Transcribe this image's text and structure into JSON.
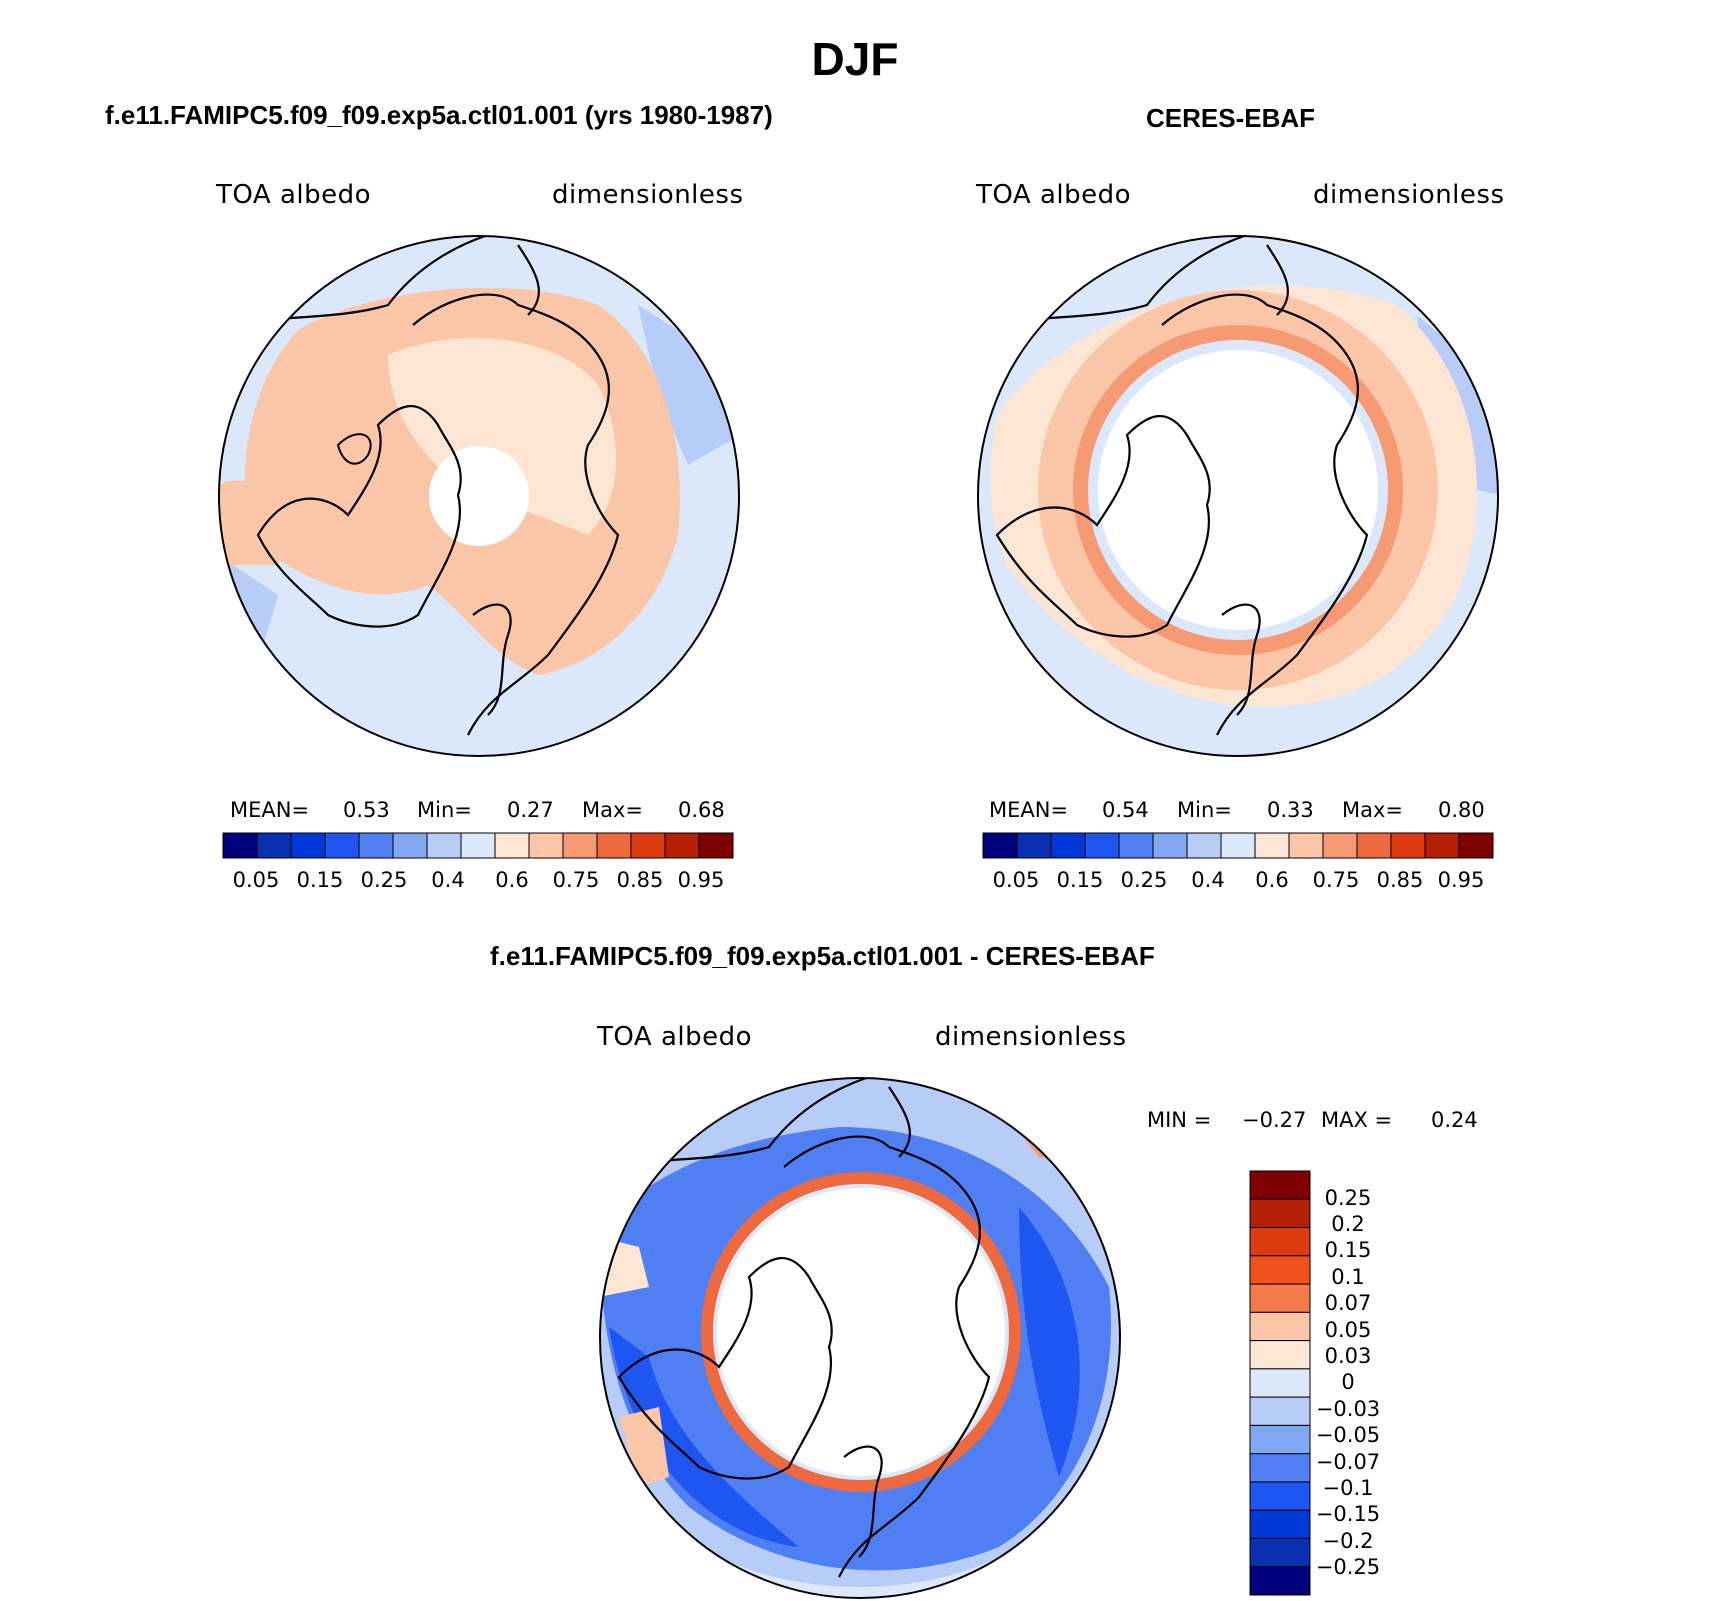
{
  "title": "DJF",
  "panels": [
    {
      "id": "model",
      "title": "f.e11.FAMIPC5.f09_f09.exp5a.ctl01.001 (yrs 1980-1987)",
      "variable": "TOA albedo",
      "units": "dimensionless",
      "stats": {
        "mean_label": "MEAN=",
        "mean": "0.53",
        "min_label": "Min=",
        "min": "0.27",
        "max_label": "Max=",
        "max": "0.68"
      },
      "colorbar_ticks": [
        "0.05",
        "0.15",
        "0.25",
        "0.4",
        "0.6",
        "0.75",
        "0.85",
        "0.95"
      ]
    },
    {
      "id": "obs",
      "title": "CERES-EBAF",
      "variable": "TOA albedo",
      "units": "dimensionless",
      "stats": {
        "mean_label": "MEAN=",
        "mean": "0.54",
        "min_label": "Min=",
        "min": "0.33",
        "max_label": "Max=",
        "max": "0.80"
      },
      "colorbar_ticks": [
        "0.05",
        "0.15",
        "0.25",
        "0.4",
        "0.6",
        "0.75",
        "0.85",
        "0.95"
      ]
    }
  ],
  "diff": {
    "title": "f.e11.FAMIPC5.f09_f09.exp5a.ctl01.001 - CERES-EBAF",
    "variable": "TOA albedo",
    "units": "dimensionless",
    "stats": {
      "min_label": "MIN =",
      "min": "−0.27",
      "max_label": "MAX =",
      "max": "0.24"
    },
    "colorbar_ticks": [
      "0.25",
      "0.2",
      "0.15",
      "0.1",
      "0.07",
      "0.05",
      "0.03",
      "0",
      "−0.03",
      "−0.05",
      "−0.07",
      "−0.1",
      "−0.15",
      "−0.2",
      "−0.25"
    ]
  },
  "colors": {
    "seq_scale": [
      "#00007f",
      "#0a2fb0",
      "#0039d8",
      "#1f55f0",
      "#4f7ff3",
      "#82a7f3",
      "#b7ccf7",
      "#dbe8fb",
      "#fde5d3",
      "#fbc5a7",
      "#f59a73",
      "#ee6a3e",
      "#dd3b12",
      "#b52006",
      "#7f0000"
    ],
    "diff_scale": [
      "#7f0000",
      "#b52006",
      "#dd3b12",
      "#f2521f",
      "#f57a4a",
      "#fbc5a7",
      "#fde5d3",
      "#dbe8fb",
      "#b7ccf7",
      "#82a7f3",
      "#4f7ff3",
      "#1f55f0",
      "#0039d8",
      "#0a2fb0",
      "#00007f"
    ]
  },
  "chart_data": [
    {
      "type": "heatmap",
      "title": "f.e11.FAMIPC5.f09_f09.exp5a.ctl01.001 (yrs 1980-1987)",
      "projection": "north polar stereographic",
      "variable": "TOA albedo",
      "units": "dimensionless",
      "mean": 0.53,
      "min": 0.27,
      "max": 0.68,
      "levels": [
        0.05,
        0.1,
        0.15,
        0.2,
        0.25,
        0.3,
        0.4,
        0.5,
        0.6,
        0.7,
        0.75,
        0.8,
        0.85,
        0.9,
        0.95
      ]
    },
    {
      "type": "heatmap",
      "title": "CERES-EBAF",
      "projection": "north polar stereographic",
      "variable": "TOA albedo",
      "units": "dimensionless",
      "mean": 0.54,
      "min": 0.33,
      "max": 0.8,
      "levels": [
        0.05,
        0.1,
        0.15,
        0.2,
        0.25,
        0.3,
        0.4,
        0.5,
        0.6,
        0.7,
        0.75,
        0.8,
        0.85,
        0.9,
        0.95
      ]
    },
    {
      "type": "heatmap",
      "title": "f.e11.FAMIPC5.f09_f09.exp5a.ctl01.001 - CERES-EBAF",
      "projection": "north polar stereographic",
      "variable": "TOA albedo",
      "units": "dimensionless",
      "min": -0.27,
      "max": 0.24,
      "levels": [
        -0.25,
        -0.2,
        -0.15,
        -0.1,
        -0.07,
        -0.05,
        -0.03,
        0,
        0.03,
        0.05,
        0.07,
        0.1,
        0.15,
        0.2,
        0.25
      ]
    }
  ]
}
